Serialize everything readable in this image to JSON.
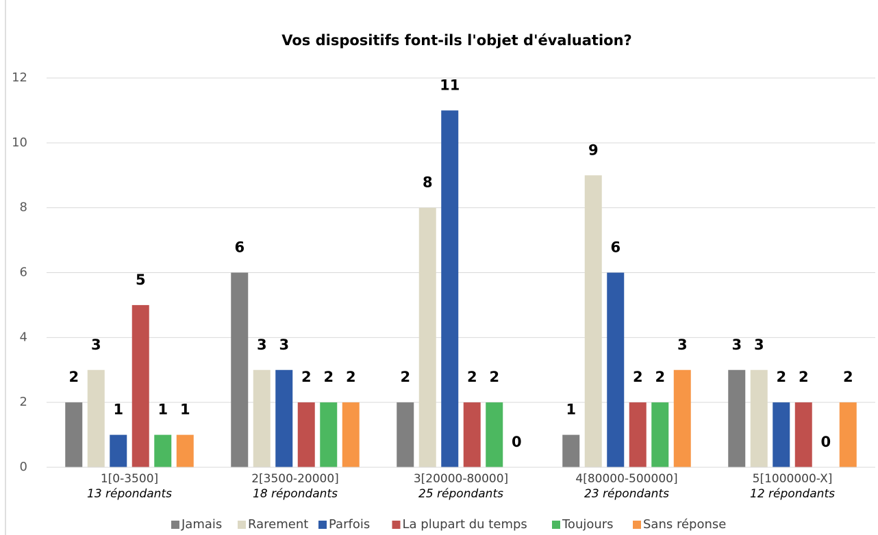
{
  "chart_data": {
    "type": "bar",
    "title": "Vos dispositifs font-ils l'objet d'évaluation?",
    "categories": [
      "1[0-3500]",
      "2[3500-20000]",
      "3[20000-80000]",
      "4[80000-500000]",
      "5[1000000-X]"
    ],
    "category_subtitles": [
      "13 répondants",
      "18 répondants",
      "25 répondants",
      "23 répondants",
      "12 répondants"
    ],
    "series": [
      {
        "name": "Jamais",
        "color": "#808080",
        "values": [
          2,
          6,
          2,
          1,
          3
        ]
      },
      {
        "name": "Rarement",
        "color": "#ddd9c4",
        "values": [
          3,
          3,
          8,
          9,
          3
        ]
      },
      {
        "name": "Parfois",
        "color": "#2e5ba8",
        "values": [
          1,
          3,
          11,
          6,
          2
        ]
      },
      {
        "name": "La plupart du temps",
        "color": "#c0504d",
        "values": [
          5,
          2,
          2,
          2,
          2
        ]
      },
      {
        "name": "Toujours",
        "color": "#4cb860",
        "values": [
          1,
          2,
          2,
          2,
          0
        ]
      },
      {
        "name": "Sans réponse",
        "color": "#f79646",
        "values": [
          1,
          2,
          0,
          3,
          2
        ]
      }
    ],
    "ylim": [
      0,
      12
    ],
    "yticks": [
      0,
      2,
      4,
      6,
      8,
      10,
      12
    ],
    "grid": true,
    "legend": "bottom"
  }
}
